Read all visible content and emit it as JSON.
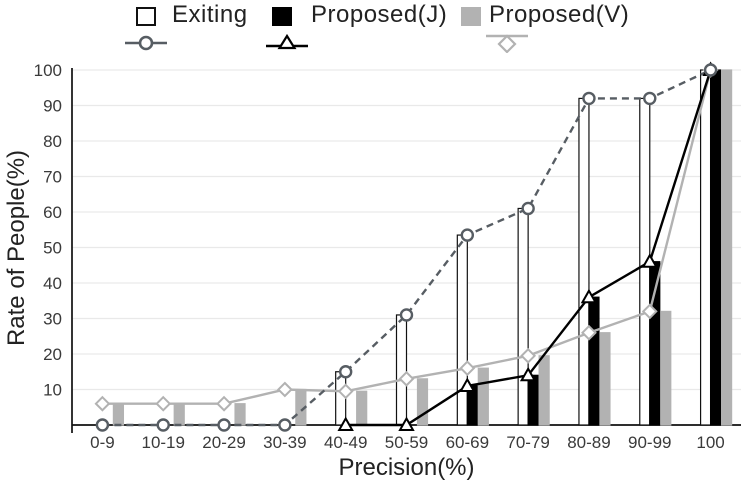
{
  "legend": {
    "items": [
      {
        "label": "Exiting",
        "swatch_color": "#ffffff",
        "swatch_border": "#111111",
        "marker": "circle",
        "marker_color": "#575d63"
      },
      {
        "label": "Proposed(J)",
        "swatch_color": "#000000",
        "swatch_border": "#000000",
        "marker": "triangle",
        "marker_color": "#000000"
      },
      {
        "label": "Proposed(V)",
        "swatch_color": "#b2b2b2",
        "swatch_border": "#b2b2b2",
        "marker": "diamond",
        "marker_color": "#b2b2b2"
      }
    ]
  },
  "chart_data": {
    "type": "bar",
    "subtype": "grouped-bars-with-overlaid-lines",
    "title": "",
    "xlabel": "Precision(%)",
    "ylabel": "Rate of People(%)",
    "ylim": [
      0,
      100
    ],
    "yticks": [
      10,
      20,
      30,
      40,
      50,
      60,
      70,
      80,
      90,
      100
    ],
    "grid": "horizontal",
    "legend_position": "top",
    "categories": [
      "0-9",
      "10-19",
      "20-29",
      "30-39",
      "40-49",
      "50-59",
      "60-69",
      "70-79",
      "80-89",
      "90-99",
      "100"
    ],
    "series": [
      {
        "name": "Exiting",
        "bar_fill": "#ffffff",
        "bar_stroke": "#111111",
        "line_color": "#575d63",
        "line_style": "dashed",
        "marker": "circle",
        "marker_from_index": 0,
        "line_from_index": 0,
        "values": [
          0,
          0,
          0,
          0,
          15,
          31,
          53.5,
          61,
          92,
          92,
          100
        ]
      },
      {
        "name": "Proposed(J)",
        "bar_fill": "#000000",
        "bar_stroke": "#000000",
        "line_color": "#000000",
        "line_style": "solid",
        "marker": "triangle",
        "marker_from_index": 4,
        "line_from_index": 4,
        "values": [
          0,
          0,
          0,
          0,
          0,
          0,
          11,
          14,
          36,
          46,
          100
        ]
      },
      {
        "name": "Proposed(V)",
        "bar_fill": "#b2b2b2",
        "bar_stroke": "#b2b2b2",
        "line_color": "#b2b2b2",
        "line_style": "solid",
        "marker": "diamond",
        "marker_from_index": 0,
        "line_from_index": 0,
        "values": [
          6,
          6,
          6,
          10,
          9.5,
          13,
          16,
          19.5,
          26,
          32,
          100
        ]
      }
    ],
    "colors": {
      "grid": "#e9e9e9",
      "axis": "#111111",
      "tick_text": "#3a3a3a",
      "dashed_line": "#575d63",
      "gray": "#b2b2b2"
    }
  }
}
